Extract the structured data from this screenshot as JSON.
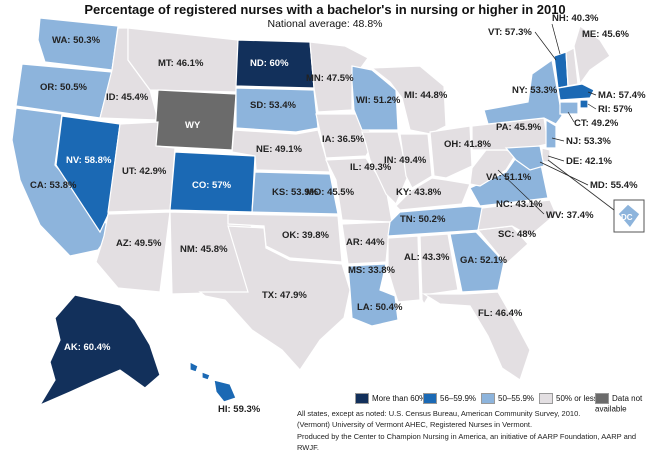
{
  "title": "Percentage of registered nurses with a bachelor's in nursing or higher in 2010",
  "subtitle": "National average: 48.8%",
  "colors": {
    "c60": "#12305b",
    "c56": "#1b69b4",
    "c50": "#8db4dc",
    "clow": "#e3dfe2",
    "cna": "#6b6b6b"
  },
  "legend": [
    {
      "label": "More than 60%",
      "color": "#12305b"
    },
    {
      "label": "56–59.9%",
      "color": "#1b69b4"
    },
    {
      "label": "50–55.9%",
      "color": "#8db4dc"
    },
    {
      "label": "50% or less",
      "color": "#e3dfe2"
    },
    {
      "label": "Data not available",
      "color": "#6b6b6b"
    }
  ],
  "states": {
    "WA": "WA: 50.3%",
    "OR": "OR: 50.5%",
    "CA": "CA: 53.8%",
    "NV": "NV: 58.8%",
    "ID": "ID: 45.4%",
    "MT": "MT: 46.1%",
    "WY": "WY",
    "UT": "UT: 42.9%",
    "AZ": "AZ: 49.5%",
    "CO": "CO: 57%",
    "NM": "NM: 45.8%",
    "ND": "ND: 60%",
    "SD": "SD: 53.4%",
    "NE": "NE: 49.1%",
    "KS": "KS: 53.9%",
    "OK": "OK: 39.8%",
    "TX": "TX: 47.9%",
    "MN": "MN: 47.5%",
    "IA": "IA: 36.5%",
    "MO": "MO: 45.5%",
    "AR": "AR: 44%",
    "LA": "LA: 50.4%",
    "WI": "WI: 51.2%",
    "IL": "IL: 49.3%",
    "MS": "MS: 33.8%",
    "MI": "MI: 44.8%",
    "IN": "IN: 49.4%",
    "KY": "KY: 43.8%",
    "TN": "TN: 50.2%",
    "AL": "AL: 43.3%",
    "OH": "OH: 41.8%",
    "GA": "GA: 52.1%",
    "FL": "FL: 46.4%",
    "SC": "SC: 48%",
    "NC": "NC: 43.1%",
    "VA": "VA: 51.1%",
    "WV": "WV: 37.4%",
    "PA": "PA: 45.9%",
    "NY": "NY: 53.3%",
    "VT": "VT: 57.3%",
    "NH": "NH: 40.3%",
    "ME": "ME: 45.6%",
    "MA": "MA: 57.4%",
    "RI": "RI: 57%",
    "CT": "CT: 49.2%",
    "NJ": "NJ: 53.3%",
    "DE": "DE: 42.1%",
    "MD": "MD: 55.4%",
    "DC": "DC",
    "AK": "AK: 60.4%",
    "HI": "HI: 59.3%"
  },
  "notes": [
    "All states, except as noted: U.S. Census Bureau, American Community Survey, 2010.",
    "(Vermont) University of Vermont AHEC, Registered Nurses in Vermont.",
    "Produced by the Center to Champion Nursing in America, an initiative of AARP Foundation, AARP and RWJF."
  ]
}
